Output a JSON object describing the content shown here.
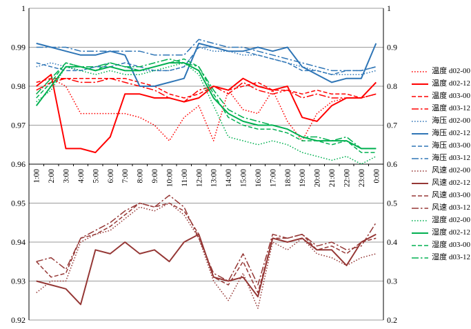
{
  "chart_data": {
    "type": "line",
    "title": "",
    "grid": true,
    "legend_position": "right",
    "x_labels": [
      "1:00",
      "2:00",
      "3:00",
      "4:00",
      "5:00",
      "6:00",
      "7:00",
      "8:00",
      "9:00",
      "10:00",
      "11:00",
      "12:00",
      "13:00",
      "14:00",
      "15:00",
      "16:00",
      "17:00",
      "18:00",
      "19:00",
      "20:00",
      "21:00",
      "22:00",
      "23:00",
      "0:00"
    ],
    "left_axis": {
      "min": 0.92,
      "max": 1,
      "ticks": [
        "0.92",
        "0.93",
        "0.94",
        "0.95",
        "0.96",
        "0.97",
        "0.98",
        "0.99",
        "1"
      ]
    },
    "right_axis": {
      "min": 0.2,
      "max": 1,
      "ticks": [
        "0.2",
        "0.3",
        "0.4",
        "0.5",
        "0.6",
        "0.7",
        "0.8",
        "0.9",
        "1"
      ]
    },
    "x_axis_cross": 0.96,
    "colors": {
      "temperature": "#FF0000",
      "pressure": "#2E75B6",
      "wind": "#953735",
      "humidity": "#00B050"
    },
    "series": [
      {
        "name": "温度 d02-00",
        "color": "#FF0000",
        "dash": "dotted",
        "values": [
          0.978,
          0.982,
          0.98,
          0.973,
          0.973,
          0.973,
          0.973,
          0.972,
          0.97,
          0.966,
          0.972,
          0.975,
          0.966,
          0.979,
          0.974,
          0.973,
          0.979,
          0.971,
          0.966,
          0.973,
          0.976,
          0.977,
          0.977,
          0.978
        ]
      },
      {
        "name": "温度 d02-12",
        "color": "#FF0000",
        "dash": "solid",
        "values": [
          0.98,
          0.983,
          0.964,
          0.964,
          0.963,
          0.967,
          0.978,
          0.978,
          0.977,
          0.977,
          0.976,
          0.977,
          0.98,
          0.979,
          0.982,
          0.98,
          0.979,
          0.98,
          0.972,
          0.971,
          0.975,
          0.977,
          0.977,
          0.981
        ]
      },
      {
        "name": "温度 d03-00",
        "color": "#FF0000",
        "dash": "dashed",
        "values": [
          0.981,
          0.982,
          0.982,
          0.982,
          0.982,
          0.982,
          0.982,
          0.981,
          0.98,
          0.978,
          0.977,
          0.978,
          0.98,
          0.979,
          0.98,
          0.981,
          0.979,
          0.979,
          0.978,
          0.979,
          0.978,
          0.978,
          0.977,
          0.978
        ]
      },
      {
        "name": "温度 d03-12",
        "color": "#FF0000",
        "dash": "dashdot",
        "values": [
          0.979,
          0.981,
          0.982,
          0.981,
          0.981,
          0.982,
          0.981,
          0.98,
          0.979,
          0.977,
          0.976,
          0.979,
          0.98,
          0.978,
          0.981,
          0.979,
          0.978,
          0.979,
          0.977,
          0.978,
          0.977,
          0.977,
          0.977,
          0.978
        ]
      },
      {
        "name": "海压 d02-00",
        "color": "#2E75B6",
        "dash": "dotted",
        "values": [
          0.985,
          0.986,
          0.985,
          0.984,
          0.985,
          0.986,
          0.985,
          0.984,
          0.984,
          0.984,
          0.985,
          0.99,
          0.989,
          0.989,
          0.988,
          0.988,
          0.987,
          0.986,
          0.985,
          0.984,
          0.983,
          0.983,
          0.983,
          0.984
        ]
      },
      {
        "name": "海压 d02-12",
        "color": "#2E75B6",
        "dash": "solid",
        "values": [
          0.991,
          0.99,
          0.989,
          0.988,
          0.988,
          0.989,
          0.988,
          0.98,
          0.98,
          0.981,
          0.982,
          0.991,
          0.99,
          0.989,
          0.989,
          0.99,
          0.989,
          0.99,
          0.985,
          0.983,
          0.981,
          0.982,
          0.982,
          0.991
        ]
      },
      {
        "name": "海压 d03-00",
        "color": "#2E75B6",
        "dash": "dashed",
        "values": [
          0.986,
          0.985,
          0.984,
          0.984,
          0.985,
          0.985,
          0.986,
          0.985,
          0.984,
          0.984,
          0.985,
          0.99,
          0.99,
          0.989,
          0.989,
          0.988,
          0.987,
          0.986,
          0.984,
          0.984,
          0.983,
          0.984,
          0.984,
          0.985
        ]
      },
      {
        "name": "海压 d03-12",
        "color": "#2E75B6",
        "dash": "dashdot",
        "values": [
          0.99,
          0.99,
          0.99,
          0.989,
          0.989,
          0.989,
          0.989,
          0.989,
          0.988,
          0.988,
          0.988,
          0.992,
          0.991,
          0.99,
          0.99,
          0.989,
          0.988,
          0.987,
          0.986,
          0.985,
          0.984,
          0.984,
          0.984,
          0.985
        ]
      },
      {
        "name": "风速 d02-00",
        "color": "#953735",
        "dash": "dotted",
        "values": [
          0.927,
          0.93,
          0.93,
          0.94,
          0.942,
          0.943,
          0.946,
          0.949,
          0.948,
          0.95,
          0.947,
          0.941,
          0.93,
          0.925,
          0.932,
          0.923,
          0.94,
          0.938,
          0.941,
          0.937,
          0.936,
          0.934,
          0.936,
          0.937
        ]
      },
      {
        "name": "风速 d02-12",
        "color": "#953735",
        "dash": "solid",
        "values": [
          0.93,
          0.929,
          0.928,
          0.924,
          0.938,
          0.937,
          0.94,
          0.937,
          0.938,
          0.935,
          0.94,
          0.942,
          0.931,
          0.93,
          0.931,
          0.926,
          0.941,
          0.94,
          0.941,
          0.938,
          0.938,
          0.934,
          0.94,
          0.942
        ]
      },
      {
        "name": "风速 d03-00",
        "color": "#953735",
        "dash": "dashed",
        "values": [
          0.935,
          0.931,
          0.932,
          0.941,
          0.942,
          0.944,
          0.947,
          0.95,
          0.949,
          0.95,
          0.948,
          0.942,
          0.931,
          0.929,
          0.935,
          0.927,
          0.941,
          0.941,
          0.942,
          0.938,
          0.939,
          0.937,
          0.94,
          0.941
        ]
      },
      {
        "name": "风速 d03-12",
        "color": "#953735",
        "dash": "dashdot",
        "values": [
          0.935,
          0.936,
          0.933,
          0.941,
          0.943,
          0.945,
          0.948,
          0.95,
          0.949,
          0.952,
          0.949,
          0.941,
          0.932,
          0.93,
          0.937,
          0.929,
          0.942,
          0.941,
          0.942,
          0.939,
          0.94,
          0.938,
          0.939,
          0.945
        ]
      },
      {
        "name": "湿度 d02-00",
        "color": "#00B050",
        "dash": "dotted",
        "values": [
          0.976,
          0.979,
          0.985,
          0.984,
          0.983,
          0.984,
          0.983,
          0.983,
          0.984,
          0.985,
          0.986,
          0.983,
          0.975,
          0.967,
          0.966,
          0.965,
          0.966,
          0.965,
          0.963,
          0.962,
          0.961,
          0.962,
          0.96,
          0.962
        ]
      },
      {
        "name": "湿度 d02-12",
        "color": "#00B050",
        "dash": "solid",
        "values": [
          0.975,
          0.98,
          0.985,
          0.985,
          0.984,
          0.985,
          0.984,
          0.984,
          0.985,
          0.986,
          0.986,
          0.984,
          0.977,
          0.973,
          0.971,
          0.97,
          0.97,
          0.969,
          0.967,
          0.966,
          0.966,
          0.966,
          0.964,
          0.964
        ]
      },
      {
        "name": "湿度 d03-00",
        "color": "#00B050",
        "dash": "dashed",
        "values": [
          0.977,
          0.981,
          0.986,
          0.985,
          0.984,
          0.986,
          0.985,
          0.984,
          0.985,
          0.986,
          0.987,
          0.985,
          0.978,
          0.972,
          0.97,
          0.969,
          0.969,
          0.968,
          0.966,
          0.966,
          0.965,
          0.966,
          0.963,
          0.963
        ]
      },
      {
        "name": "湿度 d03-12",
        "color": "#00B050",
        "dash": "dashdot",
        "values": [
          0.978,
          0.982,
          0.986,
          0.985,
          0.985,
          0.986,
          0.985,
          0.985,
          0.986,
          0.987,
          0.986,
          0.985,
          0.979,
          0.974,
          0.972,
          0.971,
          0.97,
          0.969,
          0.967,
          0.967,
          0.966,
          0.967,
          0.964,
          0.964
        ]
      }
    ]
  }
}
